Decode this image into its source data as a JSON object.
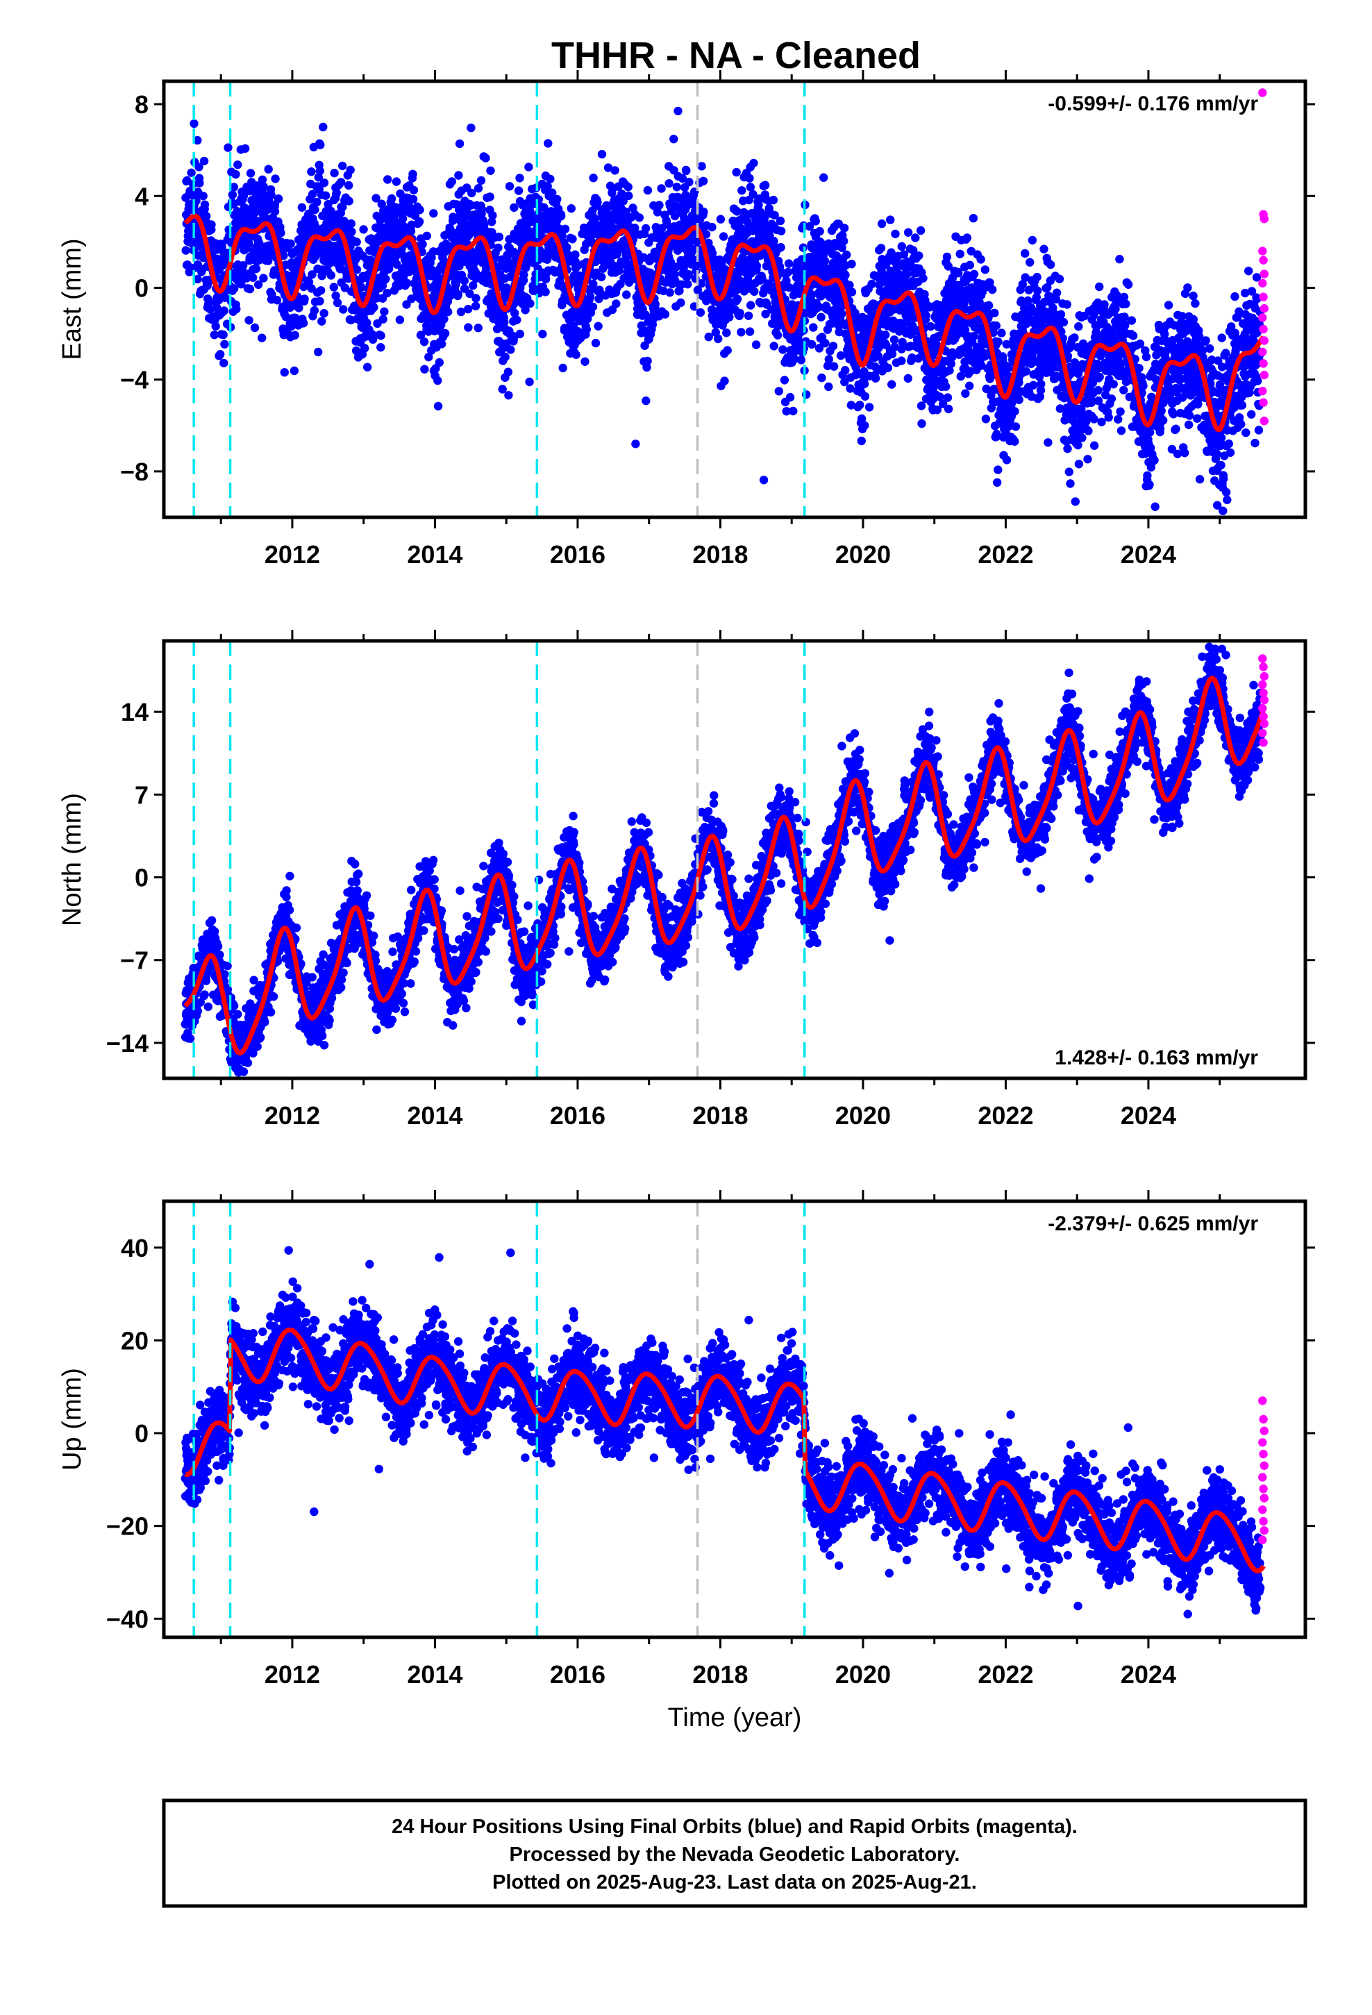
{
  "title": "THHR  - NA - Cleaned",
  "footer": {
    "line1": "24 Hour Positions Using Final Orbits (blue) and Rapid Orbits (magenta).",
    "line2": "Processed by the Nevada Geodetic Laboratory.",
    "line3": "Plotted on 2025-Aug-23. Last data on 2025-Aug-21."
  },
  "colors": {
    "final_orbits": "#0000ff",
    "rapid_orbits": "#ff00ff",
    "model_fit": "#ff0000",
    "equipment_change": "#00e5ee",
    "other_event": "#c0c0c0"
  },
  "chart_data": [
    {
      "type": "scatter",
      "component": "east",
      "ylabel": "East (mm)",
      "xlabel": "",
      "xlim": [
        2010.2,
        2026.2
      ],
      "ylim": [
        -10,
        9
      ],
      "yticks": [
        8,
        4,
        0,
        -4,
        -8
      ],
      "xticks": [
        2012,
        2014,
        2016,
        2018,
        2020,
        2022,
        2024
      ],
      "rate_text": "-0.599+/- 0.176 mm/yr",
      "rate_position": "top-right",
      "model": {
        "start": 2010.5,
        "end": 2025.62,
        "trend": -0.35,
        "annual_amplitude": 1.4,
        "annual_phase": 0.25,
        "semiannual_amplitude": 0.6,
        "semiannual_phase": 0.1,
        "anchors": [
          [
            2010.5,
            2.0
          ],
          [
            2012,
            1.5
          ],
          [
            2014,
            0.9
          ],
          [
            2016,
            1.2
          ],
          [
            2018,
            1.5
          ],
          [
            2019.2,
            -0.2
          ],
          [
            2020,
            -1.4
          ],
          [
            2021,
            -1.4
          ],
          [
            2022,
            -2.8
          ],
          [
            2023,
            -3.0
          ],
          [
            2024,
            -4.0
          ],
          [
            2025,
            -4.2
          ],
          [
            2025.62,
            -3.3
          ]
        ]
      },
      "scatter_sigma": 1.35,
      "rapid_values": [
        8.5,
        3.2,
        3.0,
        1.6,
        1.2,
        0.6,
        0.2,
        -0.4,
        -0.9,
        -1.3,
        -1.8,
        -2.3,
        -2.8,
        -3.3,
        -3.8,
        -4.5,
        -5.0,
        -5.8
      ],
      "discontinuities": [
        {
          "year": 2010.62,
          "kind": "equipment"
        },
        {
          "year": 2011.13,
          "kind": "equipment"
        },
        {
          "year": 2015.43,
          "kind": "equipment"
        },
        {
          "year": 2017.68,
          "kind": "other"
        },
        {
          "year": 2019.18,
          "kind": "equipment"
        }
      ]
    },
    {
      "type": "scatter",
      "component": "north",
      "ylabel": "North (mm)",
      "xlabel": "",
      "xlim": [
        2010.2,
        2026.2
      ],
      "ylim": [
        -17,
        20
      ],
      "yticks": [
        14,
        7,
        0,
        -7,
        -14
      ],
      "xticks": [
        2012,
        2014,
        2016,
        2018,
        2020,
        2022,
        2024
      ],
      "rate_text": "1.428+/- 0.163 mm/yr",
      "rate_position": "bottom-right",
      "model": {
        "start": 2010.5,
        "end": 2025.62,
        "trend": 1.43,
        "annual_amplitude": 4.0,
        "annual_phase": 0.6,
        "semiannual_amplitude": 0.8,
        "semiannual_phase": 0.3,
        "anchors": [
          [
            2010.5,
            -9.0
          ],
          [
            2011,
            -12.0
          ],
          [
            2012,
            -8.5
          ],
          [
            2014,
            -5.5
          ],
          [
            2016,
            -3.0
          ],
          [
            2018,
            -1.0
          ],
          [
            2019.2,
            1.0
          ],
          [
            2020,
            4.0
          ],
          [
            2022,
            6.5
          ],
          [
            2024,
            9.5
          ],
          [
            2025.62,
            14.5
          ]
        ]
      },
      "scatter_sigma": 1.4,
      "rapid_values": [
        18.5,
        17.8,
        17.0,
        16.3,
        15.6,
        15.0,
        14.3,
        13.6,
        13.0,
        12.2,
        11.4
      ],
      "discontinuities": [
        {
          "year": 2010.62,
          "kind": "equipment"
        },
        {
          "year": 2011.13,
          "kind": "equipment"
        },
        {
          "year": 2015.43,
          "kind": "equipment"
        },
        {
          "year": 2017.68,
          "kind": "other"
        },
        {
          "year": 2019.18,
          "kind": "equipment"
        }
      ]
    },
    {
      "type": "scatter",
      "component": "up",
      "ylabel": "Up (mm)",
      "xlabel": "Time (year)",
      "xlim": [
        2010.2,
        2026.2
      ],
      "ylim": [
        -44,
        50
      ],
      "yticks": [
        40,
        20,
        0,
        -20,
        -40
      ],
      "xticks": [
        2012,
        2014,
        2016,
        2018,
        2020,
        2022,
        2024
      ],
      "rate_text": "-2.379+/- 0.625 mm/yr",
      "rate_position": "top-right",
      "model": {
        "start": 2010.5,
        "end": 2025.62,
        "trend": -0.3,
        "annual_amplitude": 5.5,
        "annual_phase": 0.75,
        "semiannual_amplitude": 0.6,
        "semiannual_phase": 0.2,
        "anchors": [
          [
            2010.5,
            -3.0
          ],
          [
            2011.12,
            -3.0
          ],
          [
            2011.14,
            17.0
          ],
          [
            2012,
            17.0
          ],
          [
            2014,
            11.0
          ],
          [
            2016,
            8.0
          ],
          [
            2018,
            7.0
          ],
          [
            2019.17,
            5.0
          ],
          [
            2019.19,
            -10.0
          ],
          [
            2020,
            -12.0
          ],
          [
            2022,
            -16.0
          ],
          [
            2024,
            -20.0
          ],
          [
            2025.62,
            -24.0
          ]
        ]
      },
      "scatter_sigma": 4.2,
      "rapid_values": [
        7.0,
        3.0,
        0.5,
        -2.0,
        -4.5,
        -7.0,
        -9.5,
        -12.0,
        -14.0,
        -16.5,
        -19.0,
        -21.0,
        -23.0
      ],
      "discontinuities": [
        {
          "year": 2010.62,
          "kind": "equipment"
        },
        {
          "year": 2011.13,
          "kind": "equipment"
        },
        {
          "year": 2015.43,
          "kind": "equipment"
        },
        {
          "year": 2017.68,
          "kind": "other"
        },
        {
          "year": 2019.18,
          "kind": "equipment"
        }
      ]
    }
  ]
}
